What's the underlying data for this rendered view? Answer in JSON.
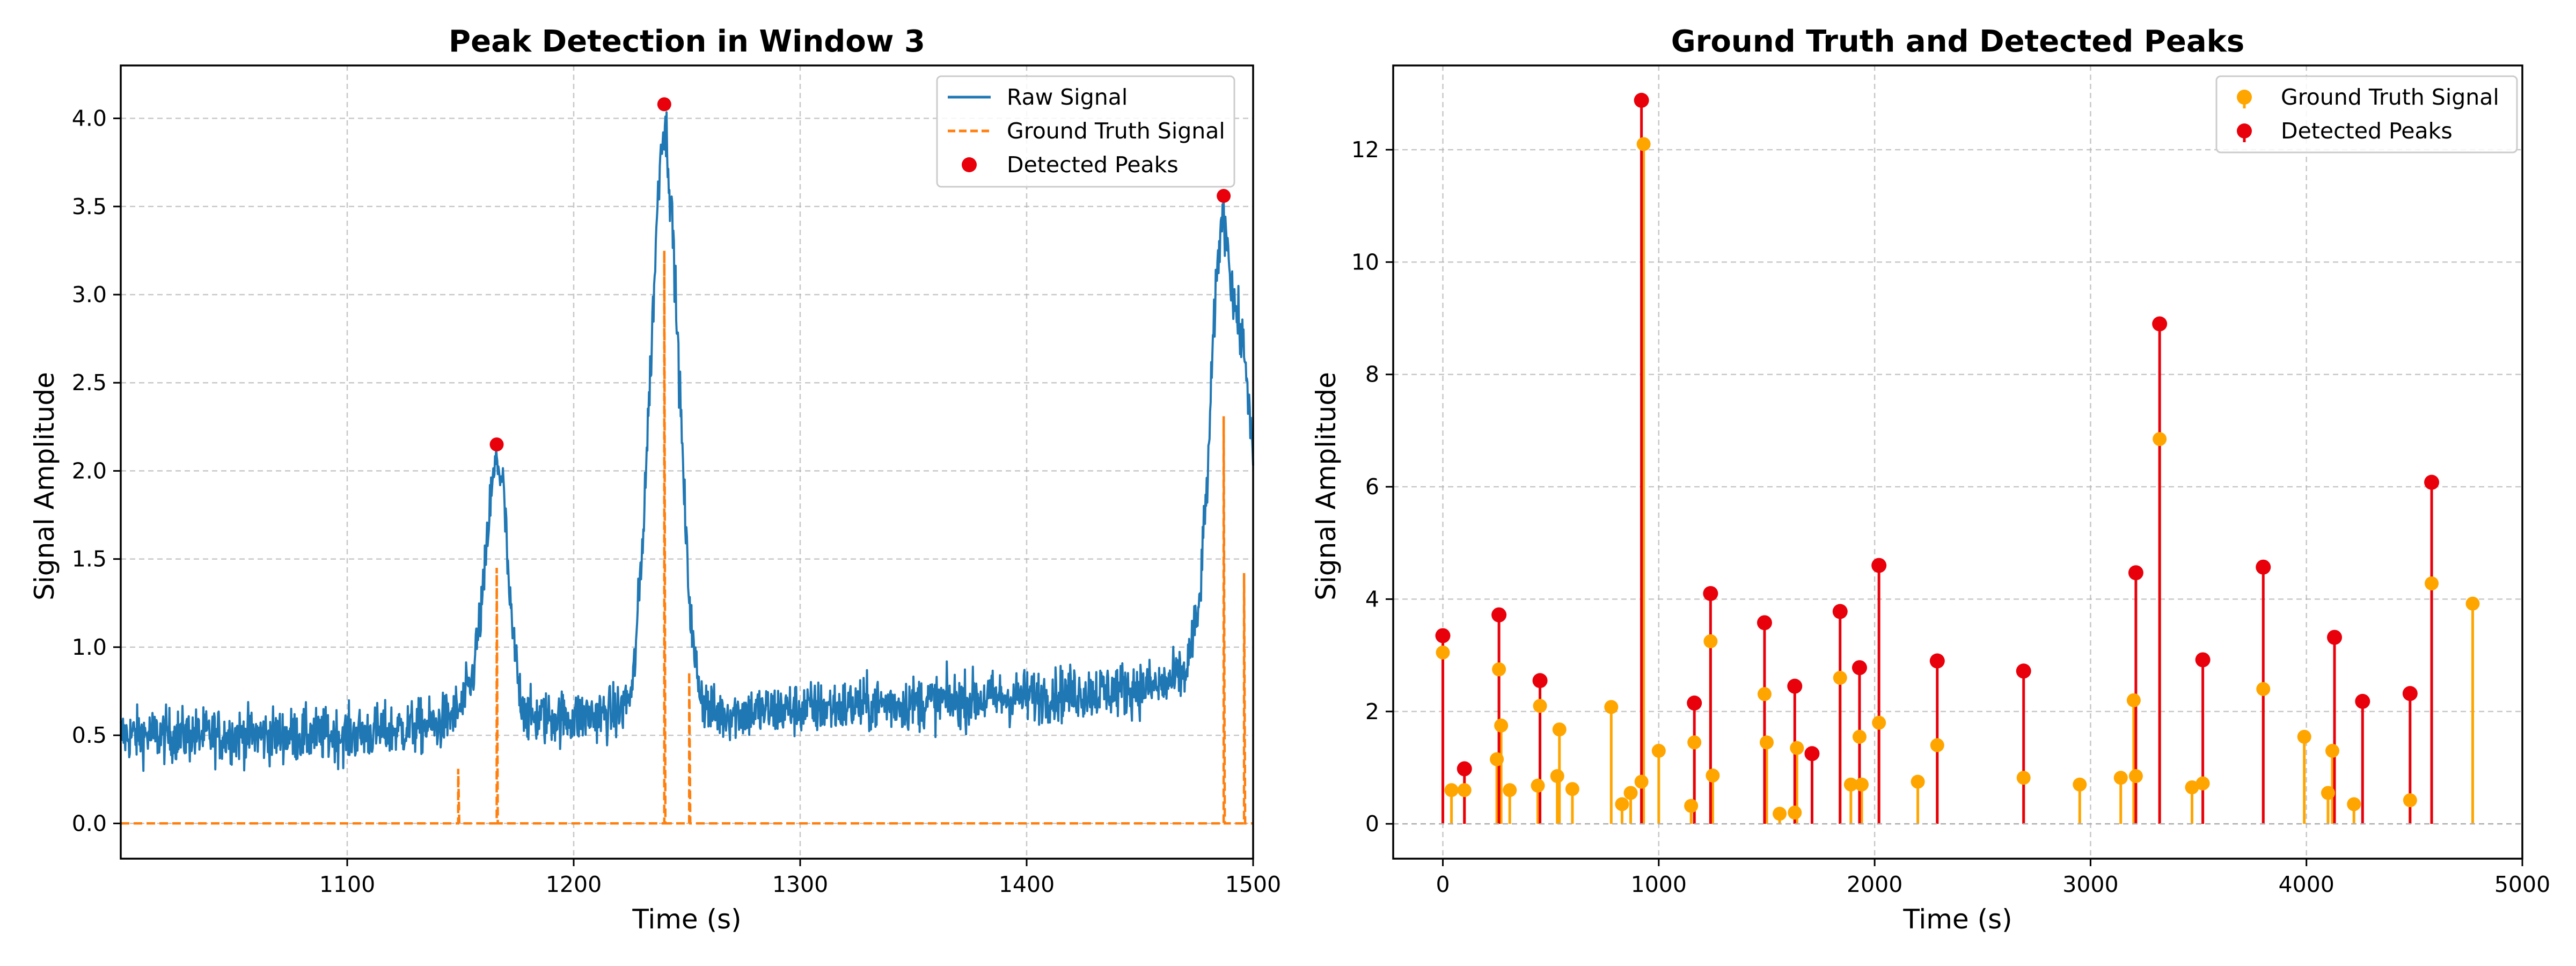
{
  "chart_data": [
    {
      "type": "line",
      "title": "Peak Detection in Window 3",
      "xlabel": "Time (s)",
      "ylabel": "Signal Amplitude",
      "xlim": [
        1000,
        1500
      ],
      "ylim": [
        -0.2,
        4.3
      ],
      "x_ticks": [
        1100,
        1200,
        1300,
        1400,
        1500
      ],
      "y_ticks": [
        0.0,
        0.5,
        1.0,
        1.5,
        2.0,
        2.5,
        3.0,
        3.5,
        4.0
      ],
      "x_tick_labels": [
        "1100",
        "1200",
        "1300",
        "1400",
        "1500"
      ],
      "y_tick_labels": [
        "0.0",
        "0.5",
        "1.0",
        "1.5",
        "2.0",
        "2.5",
        "3.0",
        "3.5",
        "4.0"
      ],
      "grid": true,
      "legend_position": "top-right",
      "colors": {
        "raw": "#1f77b4",
        "truth": "#ff7f0e",
        "peaks": "#e8000b"
      },
      "series": [
        {
          "name": "Raw Signal",
          "style": "solid",
          "baseline": [
            [
              1000,
              0.5
            ],
            [
              1100,
              0.5
            ],
            [
              1140,
              0.56
            ],
            [
              1150,
              0.65
            ],
            [
              1155,
              0.8
            ],
            [
              1160,
              1.3
            ],
            [
              1163,
              1.8
            ],
            [
              1166,
              2.08
            ],
            [
              1169,
              1.9
            ],
            [
              1172,
              1.2
            ],
            [
              1176,
              0.75
            ],
            [
              1180,
              0.6
            ],
            [
              1200,
              0.6
            ],
            [
              1220,
              0.63
            ],
            [
              1226,
              0.75
            ],
            [
              1230,
              1.5
            ],
            [
              1234,
              2.6
            ],
            [
              1237,
              3.5
            ],
            [
              1239,
              3.95
            ],
            [
              1241,
              3.9
            ],
            [
              1244,
              3.3
            ],
            [
              1247,
              2.4
            ],
            [
              1250,
              1.5
            ],
            [
              1253,
              0.95
            ],
            [
              1257,
              0.7
            ],
            [
              1262,
              0.62
            ],
            [
              1300,
              0.65
            ],
            [
              1400,
              0.72
            ],
            [
              1460,
              0.78
            ],
            [
              1470,
              0.85
            ],
            [
              1476,
              1.2
            ],
            [
              1480,
              2.0
            ],
            [
              1483,
              2.9
            ],
            [
              1486,
              3.45
            ],
            [
              1488,
              3.4
            ],
            [
              1491,
              3.0
            ],
            [
              1494,
              2.8
            ],
            [
              1497,
              2.6
            ],
            [
              1500,
              2.0
            ]
          ],
          "noise": 0.12
        },
        {
          "name": "Ground Truth Signal",
          "style": "dashed",
          "impulses": [
            [
              1149,
              0.31
            ],
            [
              1166,
              1.45
            ],
            [
              1240,
              3.25
            ],
            [
              1251,
              0.86
            ],
            [
              1487,
              2.31
            ],
            [
              1496,
              1.42
            ]
          ]
        }
      ],
      "detected_peaks": {
        "name": "Detected Peaks",
        "x": [
          1166,
          1240,
          1487
        ],
        "y": [
          2.15,
          4.08,
          3.56
        ]
      }
    },
    {
      "type": "stem",
      "title": "Ground Truth and Detected Peaks",
      "xlabel": "Time (s)",
      "ylabel": "Signal Amplitude",
      "xlim": [
        -230,
        5000
      ],
      "ylim": [
        -0.62,
        13.5
      ],
      "x_ticks": [
        0,
        1000,
        2000,
        3000,
        4000,
        5000
      ],
      "y_ticks": [
        0,
        2,
        4,
        6,
        8,
        10,
        12
      ],
      "x_tick_labels": [
        "0",
        "1000",
        "2000",
        "3000",
        "4000",
        "5000"
      ],
      "y_tick_labels": [
        "0",
        "2",
        "4",
        "6",
        "8",
        "10",
        "12"
      ],
      "grid": true,
      "legend_position": "top-right",
      "colors": {
        "truth": "#ffa500",
        "peaks": "#e8000b"
      },
      "series": [
        {
          "name": "Ground Truth Signal",
          "x": [
            0,
            40,
            100,
            250,
            260,
            270,
            310,
            440,
            450,
            530,
            540,
            600,
            780,
            830,
            870,
            920,
            930,
            1000,
            1150,
            1165,
            1240,
            1250,
            1490,
            1500,
            1560,
            1630,
            1640,
            1840,
            1890,
            1930,
            1940,
            2020,
            2200,
            2290,
            2690,
            2950,
            3140,
            3200,
            3210,
            3320,
            3470,
            3520,
            3800,
            3990,
            4100,
            4120,
            4220,
            4480,
            4580,
            4770
          ],
          "y": [
            3.05,
            0.6,
            0.6,
            1.15,
            2.75,
            1.75,
            0.6,
            0.68,
            2.1,
            0.85,
            1.68,
            0.62,
            2.08,
            0.35,
            0.55,
            0.75,
            12.1,
            1.3,
            0.32,
            1.45,
            3.25,
            0.86,
            2.31,
            1.45,
            0.18,
            0.2,
            1.35,
            2.6,
            0.7,
            1.55,
            0.7,
            1.8,
            0.75,
            1.4,
            0.82,
            0.7,
            0.82,
            2.2,
            0.85,
            6.85,
            0.65,
            0.72,
            2.4,
            1.55,
            0.55,
            1.3,
            0.35,
            0.42,
            4.28,
            3.92
          ]
        },
        {
          "name": "Detected Peaks",
          "x": [
            0,
            100,
            260,
            450,
            920,
            1165,
            1240,
            1490,
            1630,
            1710,
            1840,
            1930,
            2020,
            2290,
            2690,
            3210,
            3320,
            3520,
            3800,
            4130,
            4260,
            4480,
            4580
          ],
          "y": [
            3.35,
            0.98,
            3.72,
            2.55,
            12.88,
            2.15,
            4.1,
            3.58,
            2.45,
            1.25,
            3.78,
            2.78,
            4.6,
            2.9,
            2.72,
            4.47,
            8.9,
            2.92,
            4.57,
            3.32,
            2.18,
            2.32,
            6.08
          ]
        }
      ]
    }
  ]
}
